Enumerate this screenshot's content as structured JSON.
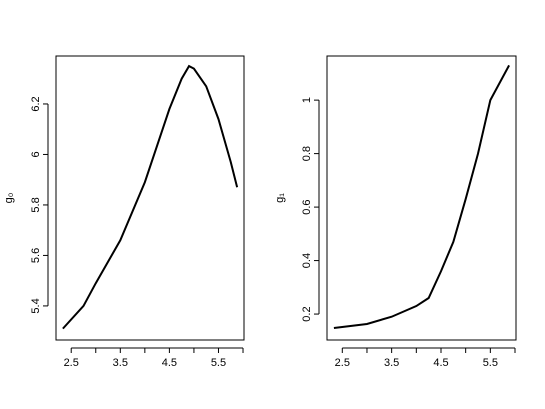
{
  "chart_data": [
    {
      "type": "line",
      "ylabel": "g₀",
      "x": [
        2.33,
        2.75,
        3.0,
        3.5,
        4.0,
        4.5,
        4.75,
        4.9,
        5.0,
        5.25,
        5.5,
        5.75,
        5.88
      ],
      "values": [
        5.31,
        5.4,
        5.49,
        5.66,
        5.89,
        6.18,
        6.3,
        6.35,
        6.34,
        6.27,
        6.14,
        5.97,
        5.87
      ],
      "color": "#000000",
      "xlim": [
        2.19,
        6.02
      ],
      "xticks": [
        2.5,
        3.5,
        4.5,
        5.5
      ],
      "xminor_ticks": [
        3,
        4,
        5,
        6
      ],
      "ylim": [
        5.265,
        6.39
      ],
      "yticks": [
        5.4,
        5.6,
        5.8,
        6.0,
        6.2
      ]
    },
    {
      "type": "line",
      "ylabel": "g₁",
      "x": [
        2.33,
        3.0,
        3.5,
        4.0,
        4.25,
        4.5,
        4.75,
        5.0,
        5.25,
        5.5,
        5.88
      ],
      "values": [
        0.148,
        0.163,
        0.19,
        0.23,
        0.26,
        0.36,
        0.47,
        0.63,
        0.8,
        1.0,
        1.13
      ],
      "color": "#000000",
      "xlim": [
        2.19,
        6.02
      ],
      "xticks": [
        2.5,
        3.5,
        4.5,
        5.5
      ],
      "xminor_ticks": [
        3,
        4,
        5,
        6
      ],
      "ylim": [
        0.103,
        1.165
      ],
      "yticks": [
        0.2,
        0.4,
        0.6,
        0.8,
        1.0
      ]
    }
  ]
}
